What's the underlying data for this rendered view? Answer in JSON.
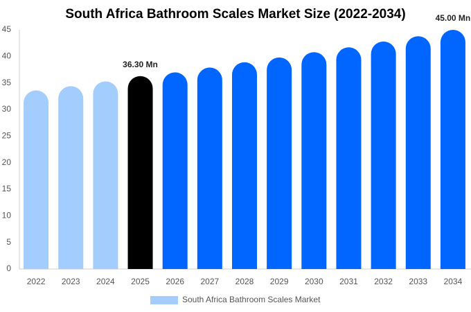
{
  "chart_data": {
    "type": "bar",
    "title": "South Africa Bathroom Scales Market Size (2022-2034)",
    "categories": [
      "2022",
      "2023",
      "2024",
      "2025",
      "2026",
      "2027",
      "2028",
      "2029",
      "2030",
      "2031",
      "2032",
      "2033",
      "2034"
    ],
    "series": [
      {
        "name": "South Africa Bathroom Scales Market",
        "color": "#a3cdfd",
        "colors": [
          "#a3cdfd",
          "#a3cdfd",
          "#a3cdfd",
          "#000000",
          "#0066ff",
          "#0066ff",
          "#0066ff",
          "#0066ff",
          "#0066ff",
          "#0066ff",
          "#0066ff",
          "#0066ff",
          "#0066ff"
        ],
        "values": [
          33.6,
          34.4,
          35.3,
          36.3,
          37.0,
          37.9,
          38.9,
          39.8,
          40.8,
          41.7,
          42.8,
          43.8,
          45.0
        ],
        "value_labels": [
          null,
          null,
          null,
          "36.30 Mn",
          null,
          null,
          null,
          null,
          null,
          null,
          null,
          null,
          "45.00 Mn"
        ]
      }
    ],
    "ylim": [
      0,
      45
    ],
    "yticks": [
      0,
      5,
      10,
      15,
      20,
      25,
      30,
      35,
      40,
      45
    ],
    "grid": false,
    "legend": "bottom"
  }
}
